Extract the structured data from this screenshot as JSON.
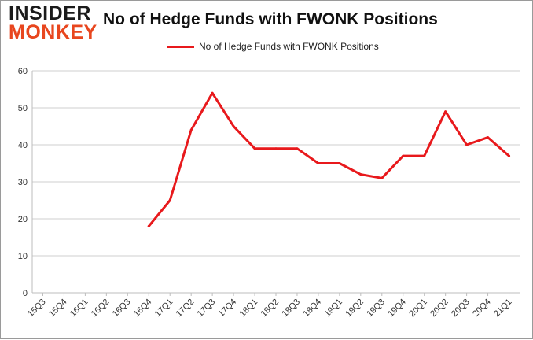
{
  "logo": {
    "line1": "INSIDER",
    "line2": "MONKEY"
  },
  "chart_data": {
    "type": "line",
    "title": "No of Hedge Funds with FWONK Positions",
    "xlabel": "",
    "ylabel": "",
    "legend_position": "top-center",
    "grid": true,
    "ylim": [
      0,
      60
    ],
    "yticks": [
      0,
      10,
      20,
      30,
      40,
      50,
      60
    ],
    "categories": [
      "15Q3",
      "15Q4",
      "16Q1",
      "16Q2",
      "16Q3",
      "16Q4",
      "17Q1",
      "17Q2",
      "17Q3",
      "17Q4",
      "18Q1",
      "18Q2",
      "18Q3",
      "18Q4",
      "19Q1",
      "19Q2",
      "19Q3",
      "19Q4",
      "20Q1",
      "20Q2",
      "20Q3",
      "20Q4",
      "21Q1"
    ],
    "series": [
      {
        "name": "No of Hedge Funds with FWONK Positions",
        "color": "#e8191c",
        "values": [
          null,
          null,
          null,
          null,
          null,
          18,
          25,
          44,
          54,
          45,
          39,
          39,
          39,
          35,
          35,
          32,
          31,
          37,
          37,
          49,
          40,
          42,
          37
        ]
      }
    ]
  }
}
